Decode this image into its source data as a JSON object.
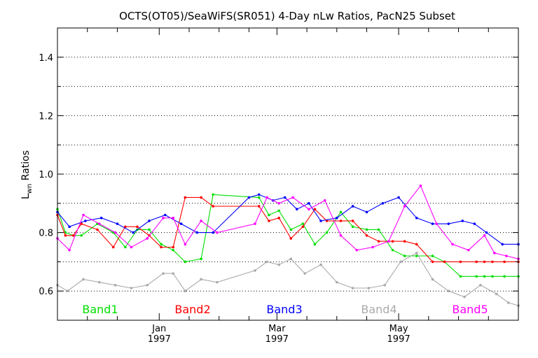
{
  "chart_data": {
    "type": "line",
    "title": "OCTS(OT05)/SeaWiFS(SR051) 4-Day nLw Ratios, PacN25 Subset",
    "ylabel": {
      "main": "L",
      "sub": "wn",
      "rest": " Ratios"
    },
    "xlabel": "",
    "ylim": [
      0.5,
      1.5
    ],
    "xlim": [
      "1996-11-11",
      "1997-06-30"
    ],
    "yticks": [
      0.6,
      0.8,
      1.0,
      1.2,
      1.4
    ],
    "ytick_labels": [
      "0.6",
      "0.8",
      "1.0",
      "1.2",
      "1.4"
    ],
    "ygrid": [
      0.6,
      0.7,
      0.8,
      0.9,
      1.0,
      1.1,
      1.2,
      1.3,
      1.4
    ],
    "grid": "horizontal dotted",
    "xticks": [
      {
        "date": "1997-01-01",
        "label1": "Jan",
        "label2": "1997"
      },
      {
        "date": "1997-03-01",
        "label1": "Mar",
        "label2": "1997"
      },
      {
        "date": "1997-05-01",
        "label1": "May",
        "label2": "1997"
      }
    ],
    "x_minor_tick_dates": [
      "1996-11-26",
      "1996-12-11",
      "1997-01-16",
      "1997-01-31",
      "1997-02-15",
      "1997-03-16",
      "1997-03-31",
      "1997-04-15",
      "1997-05-16",
      "1997-05-31",
      "1997-06-15"
    ],
    "legend_placement": "bottom, inside plot",
    "series": [
      {
        "name": "Band1",
        "color": "#00e000",
        "x": [
          "1996-11-11",
          "1996-11-15",
          "1996-11-19",
          "1996-11-23",
          "1996-12-01",
          "1996-12-09",
          "1996-12-15",
          "1996-12-21",
          "1996-12-27",
          "1997-01-02",
          "1997-01-08",
          "1997-01-14",
          "1997-01-22",
          "1997-01-28",
          "1997-02-20",
          "1997-02-25",
          "1997-03-02",
          "1997-03-08",
          "1997-03-14",
          "1997-03-20",
          "1997-03-26",
          "1997-04-02",
          "1997-04-08",
          "1997-04-15",
          "1997-04-21",
          "1997-04-28",
          "1997-05-04",
          "1997-05-10",
          "1997-05-18",
          "1997-05-24",
          "1997-06-01",
          "1997-06-09",
          "1997-06-13",
          "1997-06-17",
          "1997-06-23",
          "1997-06-30"
        ],
        "y": [
          0.88,
          0.8,
          0.79,
          0.79,
          0.83,
          0.8,
          0.75,
          0.81,
          0.81,
          0.76,
          0.74,
          0.7,
          0.71,
          0.93,
          0.92,
          0.86,
          0.875,
          0.81,
          0.83,
          0.76,
          0.8,
          0.87,
          0.82,
          0.81,
          0.81,
          0.74,
          0.72,
          0.72,
          0.72,
          0.7,
          0.65,
          0.65,
          0.65,
          0.65,
          0.65,
          0.65
        ]
      },
      {
        "name": "Band2",
        "color": "#ff0000",
        "x": [
          "1996-11-11",
          "1996-11-15",
          "1996-11-19",
          "1996-11-23",
          "1996-12-01",
          "1996-12-09",
          "1996-12-15",
          "1996-12-21",
          "1996-12-27",
          "1997-01-02",
          "1997-01-08",
          "1997-01-14",
          "1997-01-22",
          "1997-01-28",
          "1997-02-20",
          "1997-02-25",
          "1997-03-02",
          "1997-03-08",
          "1997-03-14",
          "1997-03-20",
          "1997-03-26",
          "1997-04-02",
          "1997-04-08",
          "1997-04-15",
          "1997-04-21",
          "1997-04-28",
          "1997-05-04",
          "1997-05-10",
          "1997-05-18",
          "1997-05-24",
          "1997-06-01",
          "1997-06-09",
          "1997-06-13",
          "1997-06-17",
          "1997-06-23",
          "1997-06-30"
        ],
        "y": [
          0.86,
          0.79,
          0.79,
          0.83,
          0.81,
          0.75,
          0.82,
          0.82,
          0.79,
          0.75,
          0.75,
          0.92,
          0.92,
          0.89,
          0.89,
          0.84,
          0.85,
          0.78,
          0.82,
          0.88,
          0.84,
          0.84,
          0.84,
          0.79,
          0.77,
          0.77,
          0.77,
          0.76,
          0.7,
          0.7,
          0.7,
          0.7,
          0.7,
          0.7,
          0.7,
          0.7
        ]
      },
      {
        "name": "Band3",
        "color": "#0000ff",
        "x": [
          "1996-11-11",
          "1996-11-17",
          "1996-11-25",
          "1996-12-03",
          "1996-12-11",
          "1996-12-19",
          "1996-12-27",
          "1997-01-04",
          "1997-01-12",
          "1997-01-20",
          "1997-01-28",
          "1997-02-15",
          "1997-02-20",
          "1997-02-27",
          "1997-03-05",
          "1997-03-11",
          "1997-03-17",
          "1997-03-23",
          "1997-03-31",
          "1997-04-08",
          "1997-04-15",
          "1997-04-23",
          "1997-05-01",
          "1997-05-10",
          "1997-05-18",
          "1997-05-26",
          "1997-06-02",
          "1997-06-08",
          "1997-06-14",
          "1997-06-22",
          "1997-06-30"
        ],
        "y": [
          0.87,
          0.82,
          0.84,
          0.85,
          0.83,
          0.8,
          0.84,
          0.86,
          0.83,
          0.8,
          0.8,
          0.92,
          0.93,
          0.91,
          0.92,
          0.88,
          0.9,
          0.84,
          0.85,
          0.89,
          0.87,
          0.9,
          0.92,
          0.85,
          0.83,
          0.83,
          0.84,
          0.83,
          0.8,
          0.76,
          0.76
        ]
      },
      {
        "name": "Band4",
        "color": "#aaaaaa",
        "x": [
          "1996-11-11",
          "1996-11-16",
          "1996-11-24",
          "1996-12-02",
          "1996-12-10",
          "1996-12-18",
          "1996-12-26",
          "1997-01-03",
          "1997-01-08",
          "1997-01-14",
          "1997-01-22",
          "1997-01-30",
          "1997-02-18",
          "1997-02-24",
          "1997-03-02",
          "1997-03-08",
          "1997-03-15",
          "1997-03-23",
          "1997-03-31",
          "1997-04-08",
          "1997-04-16",
          "1997-04-24",
          "1997-05-02",
          "1997-05-10",
          "1997-05-18",
          "1997-05-26",
          "1997-06-03",
          "1997-06-11",
          "1997-06-19",
          "1997-06-25",
          "1997-06-30"
        ],
        "y": [
          0.62,
          0.6,
          0.64,
          0.63,
          0.62,
          0.61,
          0.62,
          0.66,
          0.66,
          0.6,
          0.64,
          0.63,
          0.67,
          0.7,
          0.69,
          0.71,
          0.66,
          0.69,
          0.63,
          0.61,
          0.61,
          0.62,
          0.7,
          0.73,
          0.64,
          0.6,
          0.58,
          0.62,
          0.59,
          0.56,
          0.55
        ]
      },
      {
        "name": "Band5",
        "color": "#ff00ff",
        "x": [
          "1996-11-11",
          "1996-11-17",
          "1996-11-24",
          "1996-12-02",
          "1996-12-10",
          "1996-12-18",
          "1996-12-26",
          "1997-01-03",
          "1997-01-08",
          "1997-01-14",
          "1997-01-22",
          "1997-01-30",
          "1997-02-18",
          "1997-02-24",
          "1997-03-02",
          "1997-03-09",
          "1997-03-17",
          "1997-03-25",
          "1997-04-02",
          "1997-04-10",
          "1997-04-18",
          "1997-04-26",
          "1997-05-04",
          "1997-05-12",
          "1997-05-20",
          "1997-05-28",
          "1997-06-05",
          "1997-06-13",
          "1997-06-18",
          "1997-06-24",
          "1997-06-30"
        ],
        "y": [
          0.78,
          0.74,
          0.86,
          0.83,
          0.8,
          0.75,
          0.78,
          0.85,
          0.85,
          0.76,
          0.84,
          0.8,
          0.83,
          0.92,
          0.9,
          0.92,
          0.88,
          0.91,
          0.79,
          0.74,
          0.75,
          0.77,
          0.89,
          0.96,
          0.83,
          0.76,
          0.74,
          0.79,
          0.73,
          0.72,
          0.71
        ]
      }
    ]
  }
}
